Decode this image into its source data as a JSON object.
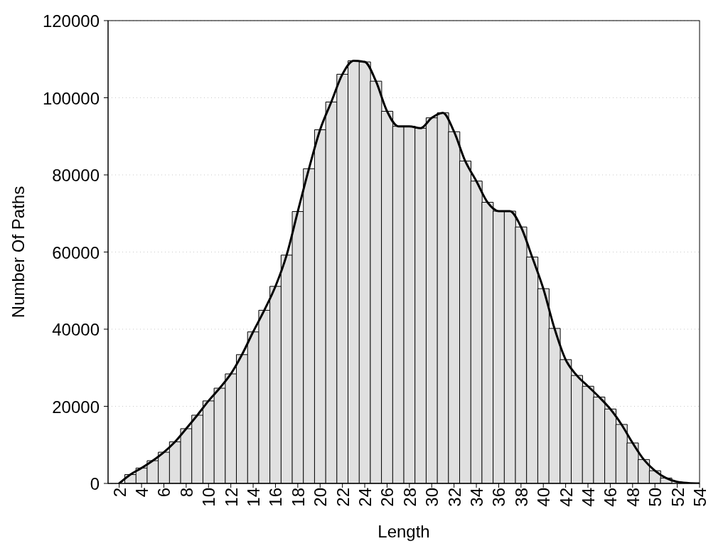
{
  "chart_data": {
    "type": "bar",
    "xlabel": "Length",
    "ylabel": "Number Of Paths",
    "x": [
      2,
      3,
      4,
      5,
      6,
      7,
      8,
      9,
      10,
      11,
      12,
      13,
      14,
      15,
      16,
      17,
      18,
      19,
      20,
      21,
      22,
      23,
      24,
      25,
      26,
      27,
      28,
      29,
      30,
      31,
      32,
      33,
      34,
      35,
      36,
      37,
      38,
      39,
      40,
      41,
      42,
      43,
      44,
      45,
      46,
      47,
      48,
      49,
      50,
      51,
      52,
      53,
      54
    ],
    "series": [
      {
        "color": "#e0e0e0",
        "values": [
          null,
          2300,
          4000,
          5900,
          8100,
          10800,
          14200,
          17700,
          21400,
          24700,
          28400,
          33400,
          39300,
          44900,
          51100,
          59200,
          70500,
          81600,
          91700,
          98900,
          106100,
          109600,
          109300,
          104300,
          96500,
          92600,
          92600,
          92100,
          94800,
          96100,
          91200,
          83600,
          78400,
          72900,
          70600,
          70600,
          66500,
          58700,
          50500,
          40200,
          32100,
          28000,
          25200,
          22400,
          19300,
          15300,
          10500,
          6200,
          3300,
          1400,
          null,
          null,
          null
        ]
      },
      {
        "type": "line",
        "color": "#000000",
        "values": [
          0,
          2300,
          4000,
          5900,
          8100,
          10800,
          14200,
          17700,
          21400,
          24700,
          28400,
          33400,
          39300,
          44900,
          51100,
          59200,
          70500,
          81600,
          91700,
          98900,
          106100,
          109600,
          109300,
          104300,
          96500,
          92600,
          92600,
          92100,
          94800,
          96100,
          91200,
          83600,
          78400,
          72900,
          70600,
          70600,
          66500,
          58700,
          50500,
          40200,
          32100,
          28000,
          25200,
          22400,
          19300,
          15300,
          10500,
          6200,
          3300,
          1400,
          400,
          100,
          0
        ]
      }
    ],
    "xlim": [
      1,
      54
    ],
    "xticks": [
      2,
      4,
      6,
      8,
      10,
      12,
      14,
      16,
      18,
      20,
      22,
      24,
      26,
      28,
      30,
      32,
      34,
      36,
      38,
      40,
      42,
      44,
      46,
      48,
      50,
      52,
      54
    ],
    "ylim": [
      0,
      120000
    ],
    "yticks": [
      0,
      20000,
      40000,
      60000,
      80000,
      100000,
      120000
    ],
    "grid": "y"
  }
}
